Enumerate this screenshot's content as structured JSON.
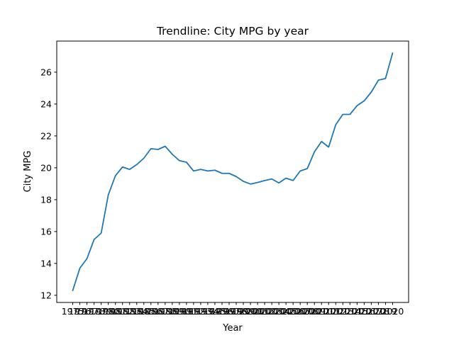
{
  "chart_data": {
    "type": "line",
    "title": "Trendline: City MPG by year",
    "xlabel": "Year",
    "ylabel": "City MPG",
    "grid": false,
    "legend": "none",
    "colors": {
      "series": "#1f77b4",
      "axes": "#000000",
      "background": "#ffffff"
    },
    "x": [
      1975,
      1976,
      1977,
      1978,
      1979,
      1980,
      1981,
      1982,
      1983,
      1984,
      1985,
      1986,
      1987,
      1988,
      1989,
      1990,
      1991,
      1992,
      1993,
      1994,
      1995,
      1996,
      1997,
      1998,
      1999,
      2000,
      2001,
      2002,
      2003,
      2004,
      2005,
      2006,
      2007,
      2008,
      2009,
      2010,
      2011,
      2012,
      2013,
      2014,
      2015,
      2016,
      2017,
      2018,
      2019,
      2020
    ],
    "x_tick_labels": [
      "1975",
      "1976",
      "1977",
      "1978",
      "1979",
      "1980",
      "1981",
      "1982",
      "1983",
      "1984",
      "1985",
      "1986",
      "1987",
      "1988",
      "1989",
      "1990",
      "1991",
      "1992",
      "1993",
      "1994",
      "1995",
      "1996",
      "1997",
      "1998",
      "1999",
      "2000",
      "2001",
      "2002",
      "2003",
      "2004",
      "2005",
      "2006",
      "2007",
      "2008",
      "2009",
      "2010",
      "2011",
      "2012",
      "2013",
      "2014",
      "2015",
      "2016",
      "2017",
      "2018",
      "2019",
      "2020"
    ],
    "series": [
      {
        "values": [
          12.3,
          13.7,
          14.3,
          15.5,
          15.9,
          18.3,
          19.5,
          20.05,
          19.9,
          20.2,
          20.6,
          21.2,
          21.15,
          21.35,
          20.85,
          20.45,
          20.35,
          19.8,
          19.9,
          19.8,
          19.85,
          19.65,
          19.65,
          19.45,
          19.15,
          18.98,
          19.08,
          19.2,
          19.3,
          19.05,
          19.35,
          19.2,
          19.8,
          19.95,
          21.0,
          21.65,
          21.3,
          22.7,
          23.35,
          23.35,
          23.9,
          24.2,
          24.75,
          25.5,
          25.6,
          27.2
        ]
      }
    ],
    "yticks": [
      12,
      14,
      16,
      18,
      20,
      22,
      24,
      26
    ],
    "ylim": [
      11.55,
      27.95
    ],
    "xlim": [
      1972.75,
      2022.25
    ]
  }
}
